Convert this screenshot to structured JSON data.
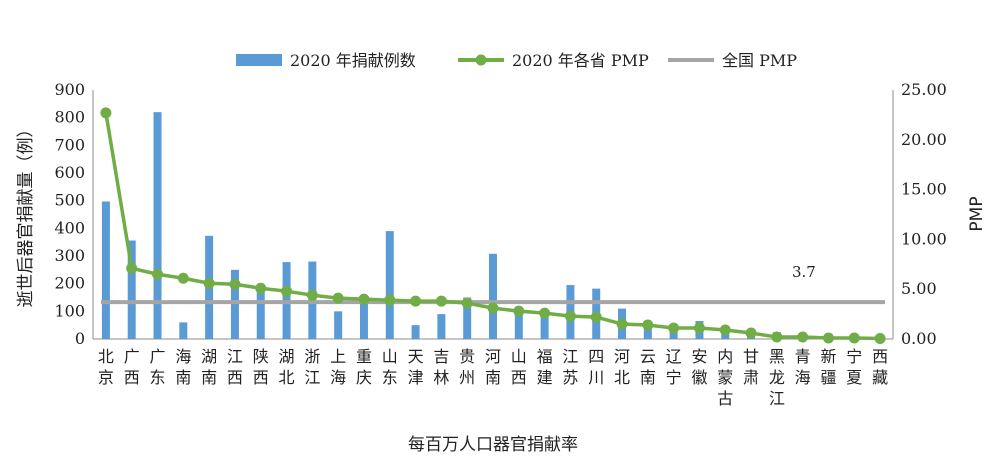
{
  "chart_data": {
    "type": "bar",
    "xlabel": "每百万人口器官捐献率",
    "ylabel": "逝世后器官捐献量（例）",
    "y2label": "PMP",
    "categories": [
      "北京",
      "广西",
      "广东",
      "海南",
      "湖南",
      "江西",
      "陕西",
      "湖北",
      "浙江",
      "上海",
      "重庆",
      "山东",
      "天津",
      "吉林",
      "贵州",
      "河南",
      "山西",
      "福建",
      "江苏",
      "四川",
      "河北",
      "云南",
      "辽宁",
      "安徽",
      "内蒙古",
      "甘肃",
      "黑龙江",
      "青海",
      "新疆",
      "宁夏",
      "西藏"
    ],
    "ylim": [
      0,
      900
    ],
    "yticks": [
      0,
      100,
      200,
      300,
      400,
      500,
      600,
      700,
      800,
      900
    ],
    "y2lim": [
      0,
      25
    ],
    "y2ticks": [
      "0.00",
      "5.00",
      "10.00",
      "15.00",
      "20.00",
      "25.00"
    ],
    "legend_position": "top",
    "series": [
      {
        "name": "2020 年捐献例数",
        "type": "bar",
        "axis": "left",
        "color": "#5b9bd5",
        "values": [
          497,
          356,
          820,
          60,
          373,
          250,
          190,
          278,
          280,
          100,
          150,
          390,
          50,
          90,
          150,
          308,
          100,
          100,
          195,
          182,
          110,
          50,
          50,
          65,
          40,
          30,
          25,
          10,
          10,
          5,
          5
        ]
      },
      {
        "name": "2020 年各省 PMP",
        "type": "line",
        "axis": "right",
        "color": "#70ad47",
        "values": [
          22.7,
          7.1,
          6.5,
          6.1,
          5.6,
          5.5,
          5.1,
          4.8,
          4.4,
          4.1,
          4.0,
          3.9,
          3.8,
          3.8,
          3.6,
          3.1,
          2.8,
          2.6,
          2.3,
          2.2,
          1.5,
          1.4,
          1.1,
          1.1,
          0.9,
          0.6,
          0.2,
          0.2,
          0.1,
          0.1,
          0.05
        ]
      },
      {
        "name": "全国 PMP",
        "type": "line",
        "axis": "right",
        "color": "#a5a5a5",
        "value": 3.7
      }
    ],
    "annotation": "3.7"
  }
}
